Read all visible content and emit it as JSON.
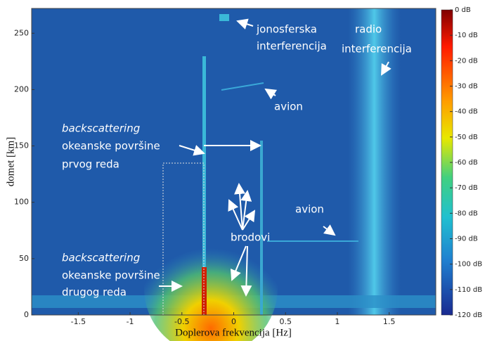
{
  "chart_data": {
    "type": "heatmap",
    "xlabel": "Doplerova frekvencija [Hz]",
    "ylabel": "domet [km]",
    "xlim": [
      -1.95,
      1.95
    ],
    "xticks": [
      -1.5,
      -1,
      -0.5,
      0,
      0.5,
      1,
      1.5
    ],
    "ylim": [
      0,
      272
    ],
    "yticks": [
      0,
      50,
      100,
      150,
      200,
      250
    ],
    "colorbar": {
      "lim": [
        -120,
        0
      ],
      "ticks": [
        {
          "value": 0,
          "label": "0 dB"
        },
        {
          "value": -10,
          "label": "-10 dB"
        },
        {
          "value": -20,
          "label": "-20 dB"
        },
        {
          "value": -30,
          "label": "-30 dB"
        },
        {
          "value": -40,
          "label": "-40 dB"
        },
        {
          "value": -50,
          "label": "-50 dB"
        },
        {
          "value": -60,
          "label": "-60 dB"
        },
        {
          "value": -70,
          "label": "-70 dB"
        },
        {
          "value": -80,
          "label": "-80 dB"
        },
        {
          "value": -90,
          "label": "-90 dB"
        },
        {
          "value": -100,
          "label": "-100 dB"
        },
        {
          "value": -110,
          "label": "-110 dB"
        },
        {
          "value": -120,
          "label": "-120 dB"
        }
      ]
    },
    "annotations": [
      {
        "lines": [
          "jonosferska",
          "interferencija"
        ]
      },
      {
        "lines": [
          "radio",
          "interferencija"
        ]
      },
      {
        "lines": [
          "avion"
        ]
      },
      {
        "lines": [
          "avion"
        ]
      },
      {
        "lines": [
          "backscattering",
          "okeanske površine",
          "prvog reda"
        ]
      },
      {
        "lines": [
          "brodovi"
        ]
      },
      {
        "lines": [
          "backscattering",
          "okeanske površine",
          "drugog reda"
        ]
      }
    ]
  }
}
